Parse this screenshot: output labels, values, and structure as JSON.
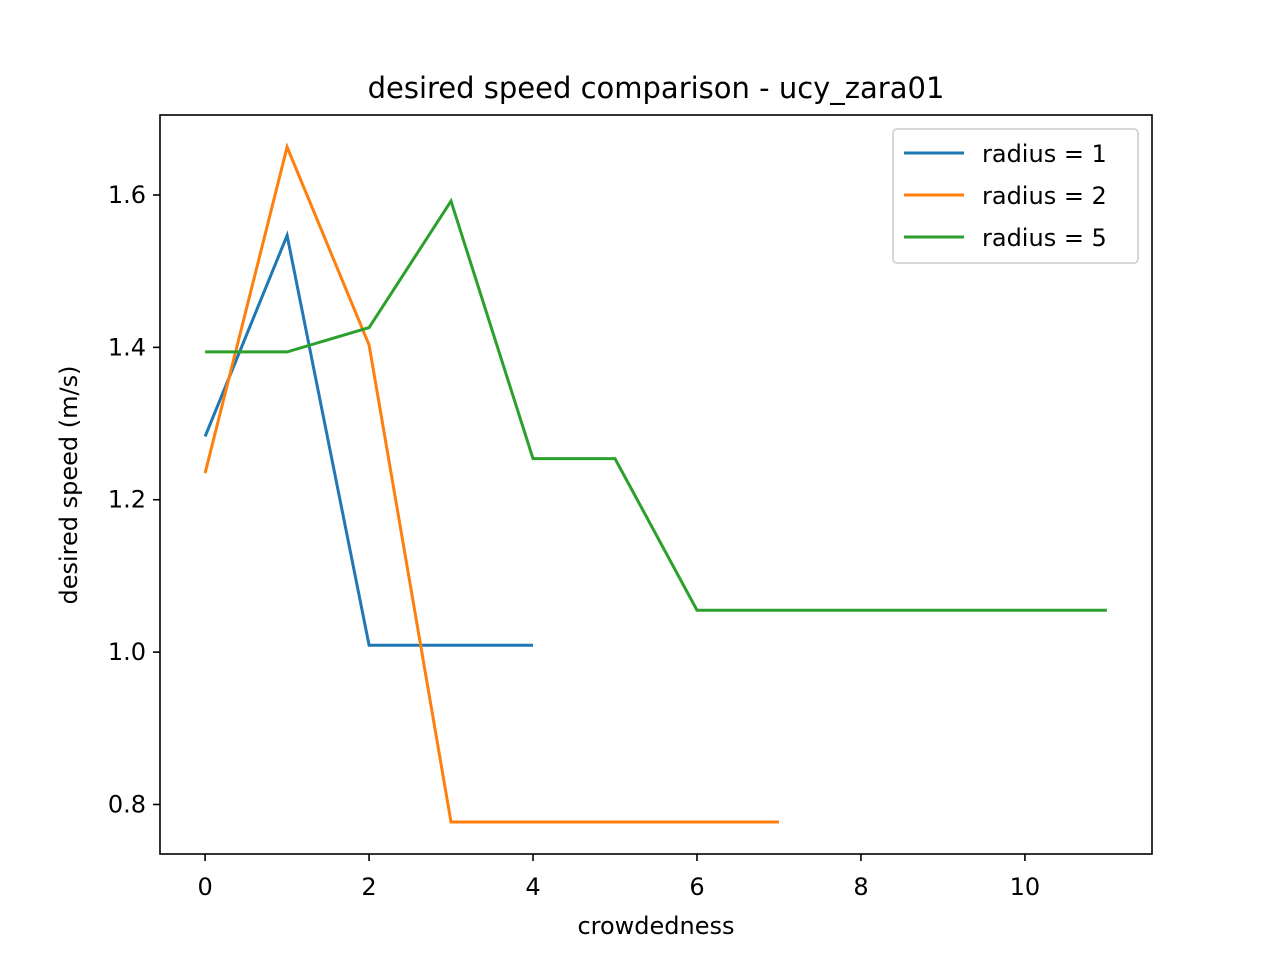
{
  "chart_data": {
    "type": "line",
    "title": "desired speed comparison - ucy_zara01",
    "xlabel": "crowdedness",
    "ylabel": "desired speed (m/s)",
    "xlim": [
      -0.55,
      11.55
    ],
    "ylim": [
      0.735,
      1.705
    ],
    "xticks": [
      0,
      2,
      4,
      6,
      8,
      10
    ],
    "xtick_labels": [
      "0",
      "2",
      "4",
      "6",
      "8",
      "10"
    ],
    "yticks": [
      0.8,
      1.0,
      1.2,
      1.4,
      1.6
    ],
    "ytick_labels": [
      "0.8",
      "1.0",
      "1.2",
      "1.4",
      "1.6"
    ],
    "grid": false,
    "legend_position": "top-right",
    "series": [
      {
        "name": "radius = 1",
        "color": "#1f77b4",
        "x": [
          0,
          1,
          2,
          3,
          4
        ],
        "y": [
          1.283,
          1.547,
          1.009,
          1.009,
          1.009
        ]
      },
      {
        "name": "radius = 2",
        "color": "#ff7f0e",
        "x": [
          0,
          1,
          2,
          3,
          4,
          5,
          6,
          7
        ],
        "y": [
          1.235,
          1.663,
          1.403,
          0.777,
          0.777,
          0.777,
          0.777,
          0.777
        ]
      },
      {
        "name": "radius = 5",
        "color": "#2ca02c",
        "x": [
          0,
          1,
          2,
          3,
          4,
          5,
          6,
          7,
          8,
          9,
          10,
          11
        ],
        "y": [
          1.394,
          1.394,
          1.426,
          1.592,
          1.254,
          1.254,
          1.055,
          1.055,
          1.055,
          1.055,
          1.055,
          1.055
        ]
      }
    ]
  }
}
